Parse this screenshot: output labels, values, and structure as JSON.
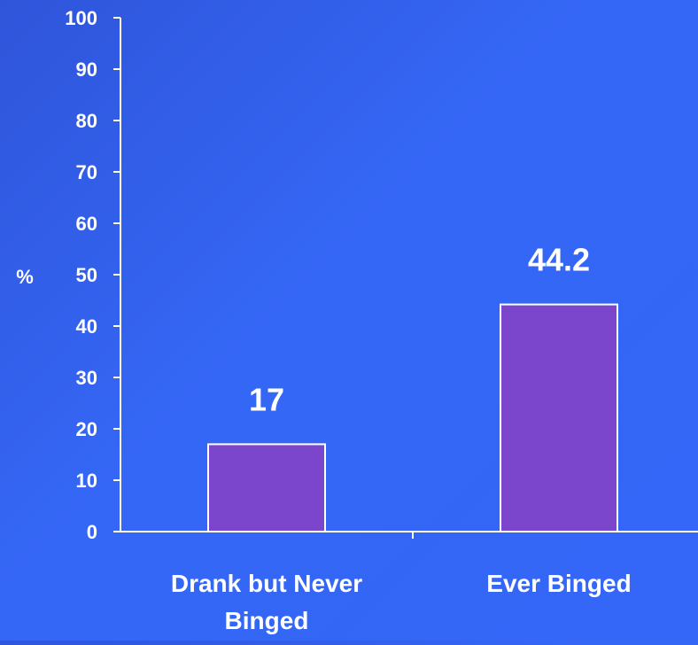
{
  "chart_data": {
    "type": "bar",
    "categories": [
      [
        "Drank but Never",
        "Binged"
      ],
      [
        "Ever Binged"
      ]
    ],
    "values": [
      17,
      44.2
    ],
    "value_labels": [
      "17",
      "44.2"
    ],
    "ylabel": "%",
    "ylim": [
      0,
      100
    ],
    "yticks": [
      0,
      10,
      20,
      30,
      40,
      50,
      60,
      70,
      80,
      90,
      100
    ],
    "grid": false,
    "colors": {
      "bar_fill": "#7b45cc",
      "bar_stroke": "#ffffff",
      "axis": "#ffffff",
      "text": "#ffffff"
    }
  }
}
